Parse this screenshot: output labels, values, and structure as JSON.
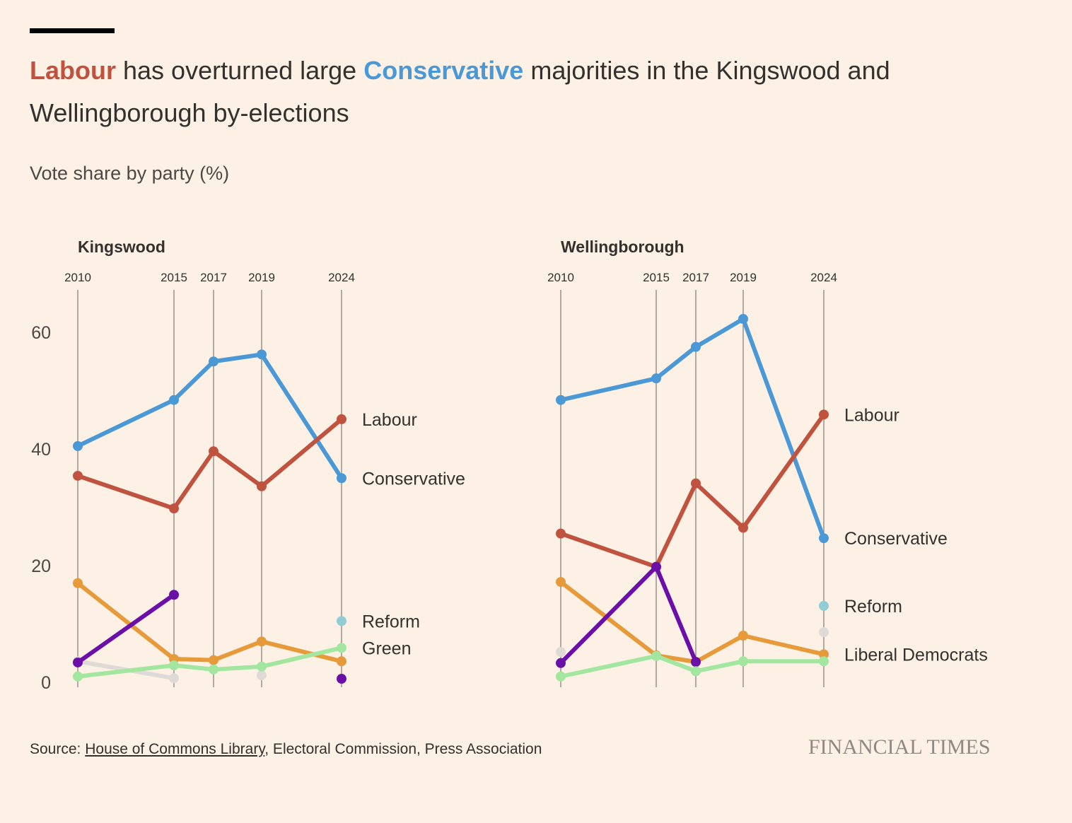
{
  "title": {
    "part1": "Labour",
    "part2": " has overturned large ",
    "part3": "Conservative",
    "part4": " majorities in the Kingswood and Wellingborough by-elections"
  },
  "subtitle": "Vote share by party (%)",
  "source": {
    "prefix": "Source: ",
    "link": "House of Commons Library",
    "rest": ", Electoral Commission, Press Association"
  },
  "logo": "FINANCIAL TIMES",
  "colors": {
    "background": "#fdf1e6",
    "labour": "#c0533f",
    "conservative": "#4a98d6",
    "libdem": "#e69a3a",
    "green": "#a3e6a0",
    "reform": "#92ccd4",
    "purple": "#6a10a8",
    "grey": "#dedad6",
    "gridline": "#9a918a"
  },
  "chart_data": [
    {
      "type": "line",
      "title": "Kingswood",
      "x": [
        "2010",
        "2015",
        "2017",
        "2019",
        "2024"
      ],
      "ylim": [
        0,
        65
      ],
      "yticks": [
        0,
        20,
        40,
        60
      ],
      "grid": "vertical lines at each election year",
      "series": [
        {
          "name": "Conservative",
          "color": "#4a98d6",
          "values": [
            40.5,
            48.4,
            55.0,
            56.2,
            35.0
          ]
        },
        {
          "name": "Labour",
          "color": "#c0533f",
          "values": [
            35.4,
            29.8,
            39.6,
            33.6,
            45.1
          ]
        },
        {
          "name": "",
          "color": "#e69a3a",
          "values": [
            17.0,
            4.0,
            3.8,
            7.0,
            3.6
          ]
        },
        {
          "name": "",
          "color": "#dedad6",
          "values": [
            3.6,
            0.7,
            null,
            1.2,
            null
          ]
        },
        {
          "name": "",
          "color": "#6a10a8",
          "values": [
            3.4,
            15.0,
            null,
            null,
            0.6
          ]
        },
        {
          "name": "Green",
          "color": "#a3e6a0",
          "values": [
            1.0,
            2.9,
            2.2,
            2.7,
            5.9
          ]
        },
        {
          "name": "Reform",
          "color": "#92ccd4",
          "values": [
            null,
            null,
            null,
            null,
            10.5
          ]
        }
      ]
    },
    {
      "type": "line",
      "title": "Wellingborough",
      "x": [
        "2010",
        "2015",
        "2017",
        "2019",
        "2024"
      ],
      "ylim": [
        0,
        65
      ],
      "grid": "vertical lines at each election year",
      "series": [
        {
          "name": "Conservative",
          "color": "#4a98d6",
          "values": [
            48.4,
            52.1,
            57.5,
            62.3,
            24.7
          ]
        },
        {
          "name": "Labour",
          "color": "#c0533f",
          "values": [
            25.5,
            19.8,
            34.1,
            26.5,
            45.9
          ]
        },
        {
          "name": "Liberal Democrats",
          "color": "#e69a3a",
          "values": [
            17.2,
            4.6,
            3.5,
            8.0,
            4.8
          ]
        },
        {
          "name": "",
          "color": "#dedad6",
          "values": [
            5.2,
            null,
            null,
            null,
            8.6
          ]
        },
        {
          "name": "",
          "color": "#6a10a8",
          "values": [
            3.3,
            19.8,
            3.5,
            null,
            null
          ]
        },
        {
          "name": "",
          "color": "#a3e6a0",
          "values": [
            1.0,
            4.5,
            1.9,
            3.6,
            3.6
          ]
        },
        {
          "name": "Reform",
          "color": "#92ccd4",
          "values": [
            null,
            null,
            null,
            null,
            13.1
          ]
        }
      ]
    }
  ]
}
